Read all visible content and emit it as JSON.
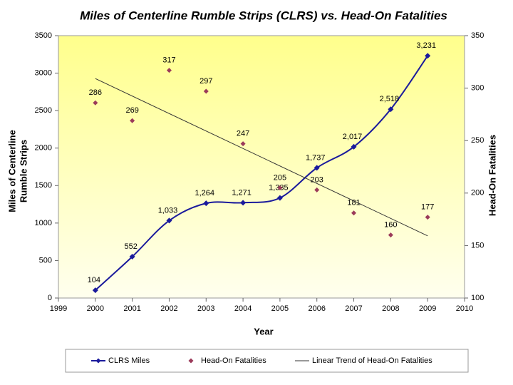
{
  "chart_data": {
    "type": "line",
    "title": "Miles of Centerline Rumble Strips (CLRS) vs. Head-On Fatalities",
    "xlabel": "Year",
    "ylabel": [
      "Miles of Centerline",
      "Rumble Strips"
    ],
    "y2label": "Head-On Fatalities",
    "x": [
      2000,
      2001,
      2002,
      2003,
      2004,
      2005,
      2006,
      2007,
      2008,
      2009
    ],
    "xlim": [
      1999,
      2010
    ],
    "xticks": [
      1999,
      2000,
      2001,
      2002,
      2003,
      2004,
      2005,
      2006,
      2007,
      2008,
      2009,
      2010
    ],
    "ylim": [
      0,
      3500
    ],
    "yticks": [
      0,
      500,
      1000,
      1500,
      2000,
      2500,
      3000,
      3500
    ],
    "y2lim": [
      100,
      350
    ],
    "y2ticks": [
      100,
      150,
      200,
      250,
      300,
      350
    ],
    "legend": "bottom",
    "series": [
      {
        "name": "CLRS Miles",
        "color": "#1a1a9c",
        "values": [
          104,
          552,
          1033,
          1264,
          1271,
          1335,
          1737,
          2017,
          2518,
          3231
        ],
        "value_labels": [
          "104",
          "552",
          "1,033",
          "1,264",
          "1,271",
          "1,335",
          "1,737",
          "2,017",
          "2,518",
          "3,231"
        ]
      },
      {
        "name": "Head-On Fatalities",
        "color": "#9b3b5a",
        "axis": "y2",
        "values": [
          286,
          269,
          317,
          297,
          247,
          205,
          203,
          181,
          160,
          177
        ]
      },
      {
        "name": "Linear Trend of Head-On Fatalities",
        "color": "#333333",
        "axis": "y2",
        "x": [
          2000,
          2009
        ],
        "values": [
          309.1,
          159.2
        ]
      }
    ]
  }
}
